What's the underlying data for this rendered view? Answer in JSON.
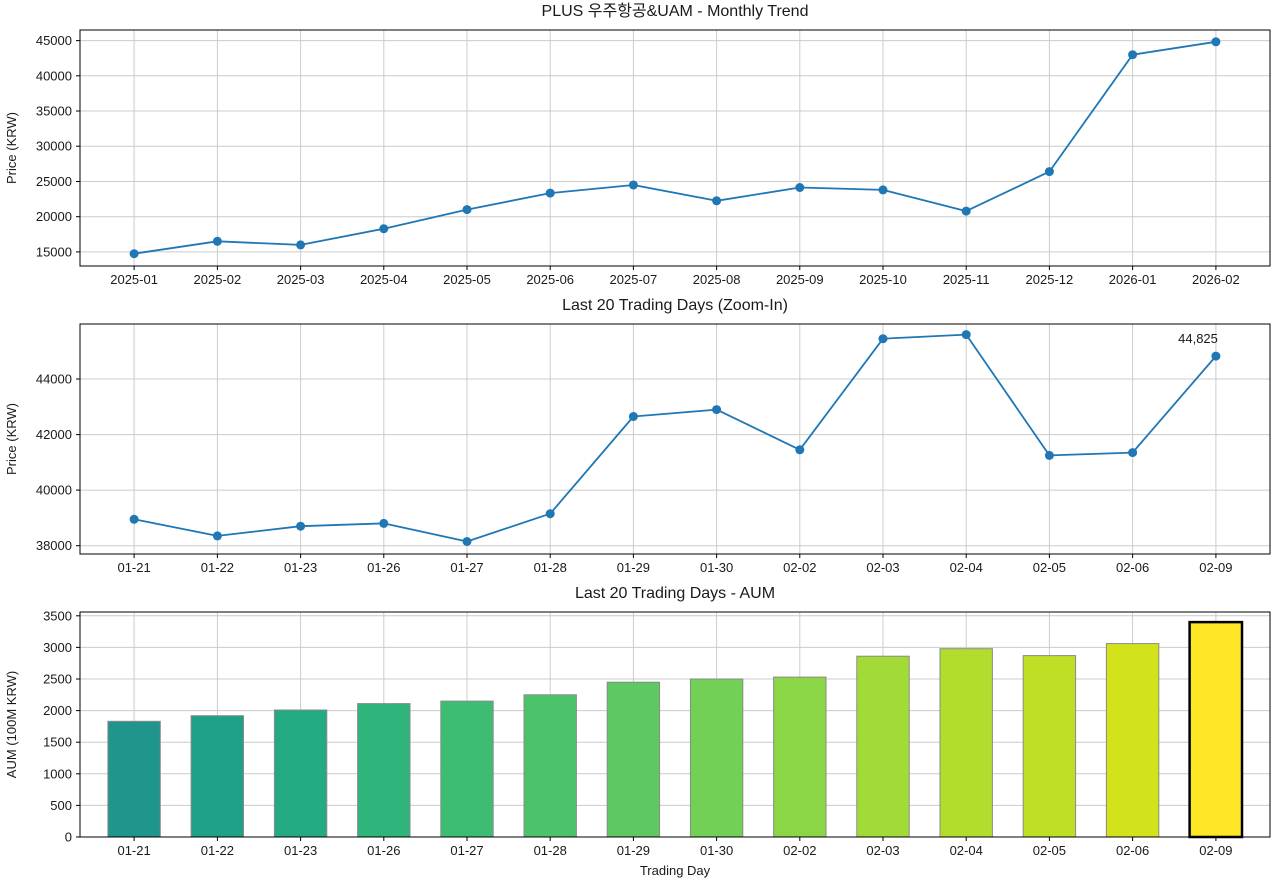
{
  "figure": {
    "background": "#ffffff",
    "line_color": "#1f77b4",
    "grid_color": "#cccccc"
  },
  "chart_data": [
    {
      "type": "line",
      "title": "PLUS 우주항공&UAM - Monthly Trend",
      "xlabel": "",
      "ylabel": "Price (KRW)",
      "categories": [
        "2025-01",
        "2025-02",
        "2025-03",
        "2025-04",
        "2025-05",
        "2025-06",
        "2025-07",
        "2025-08",
        "2025-09",
        "2025-10",
        "2025-11",
        "2025-12",
        "2026-01",
        "2026-02"
      ],
      "values": [
        14750,
        16500,
        16000,
        18300,
        21000,
        23350,
        24500,
        22250,
        24150,
        23800,
        20800,
        26400,
        43000,
        44825
      ],
      "yticks": [
        15000,
        20000,
        25000,
        30000,
        35000,
        40000,
        45000
      ],
      "ylim": [
        13000,
        46500
      ],
      "line_color": "#1f77b4",
      "grid": true,
      "legend": "none"
    },
    {
      "type": "line",
      "title": "Last 20 Trading Days (Zoom-In)",
      "xlabel": "",
      "ylabel": "Price (KRW)",
      "categories": [
        "01-21",
        "01-22",
        "01-23",
        "01-26",
        "01-27",
        "01-28",
        "01-29",
        "01-30",
        "02-02",
        "02-03",
        "02-04",
        "02-05",
        "02-06",
        "02-09"
      ],
      "values": [
        38950,
        38350,
        38700,
        38800,
        38150,
        39150,
        42650,
        42900,
        41450,
        45450,
        45600,
        41250,
        41350,
        44825
      ],
      "yticks": [
        38000,
        40000,
        42000,
        44000
      ],
      "ylim": [
        37700,
        45980
      ],
      "line_color": "#1f77b4",
      "grid": true,
      "annotation": {
        "index": 13,
        "label": "44,825"
      }
    },
    {
      "type": "bar",
      "title": "Last 20 Trading Days - AUM",
      "xlabel": "Trading Day",
      "ylabel": "AUM (100M KRW)",
      "categories": [
        "01-21",
        "01-22",
        "01-23",
        "01-26",
        "01-27",
        "01-28",
        "01-29",
        "01-30",
        "02-02",
        "02-03",
        "02-04",
        "02-05",
        "02-06",
        "02-09"
      ],
      "values": [
        1830,
        1920,
        2010,
        2110,
        2150,
        2250,
        2450,
        2500,
        2530,
        2860,
        2980,
        2870,
        3060,
        3400
      ],
      "yticks": [
        0,
        500,
        1000,
        1500,
        2000,
        2500,
        3000,
        3500
      ],
      "ylim": [
        0,
        3560
      ],
      "bar_colors": [
        "#1f958b",
        "#1fa188",
        "#24aa83",
        "#2fb47c",
        "#3dbc74",
        "#4cc36a",
        "#5ec962",
        "#73d056",
        "#8bd646",
        "#a2da37",
        "#b2dd2d",
        "#bddf26",
        "#d2e21b",
        "#fde725"
      ],
      "bar_edge": "#8a8a8a",
      "highlight": {
        "index": 13,
        "edge_color": "#000000",
        "edge_width": 2.5
      },
      "grid": true
    }
  ]
}
